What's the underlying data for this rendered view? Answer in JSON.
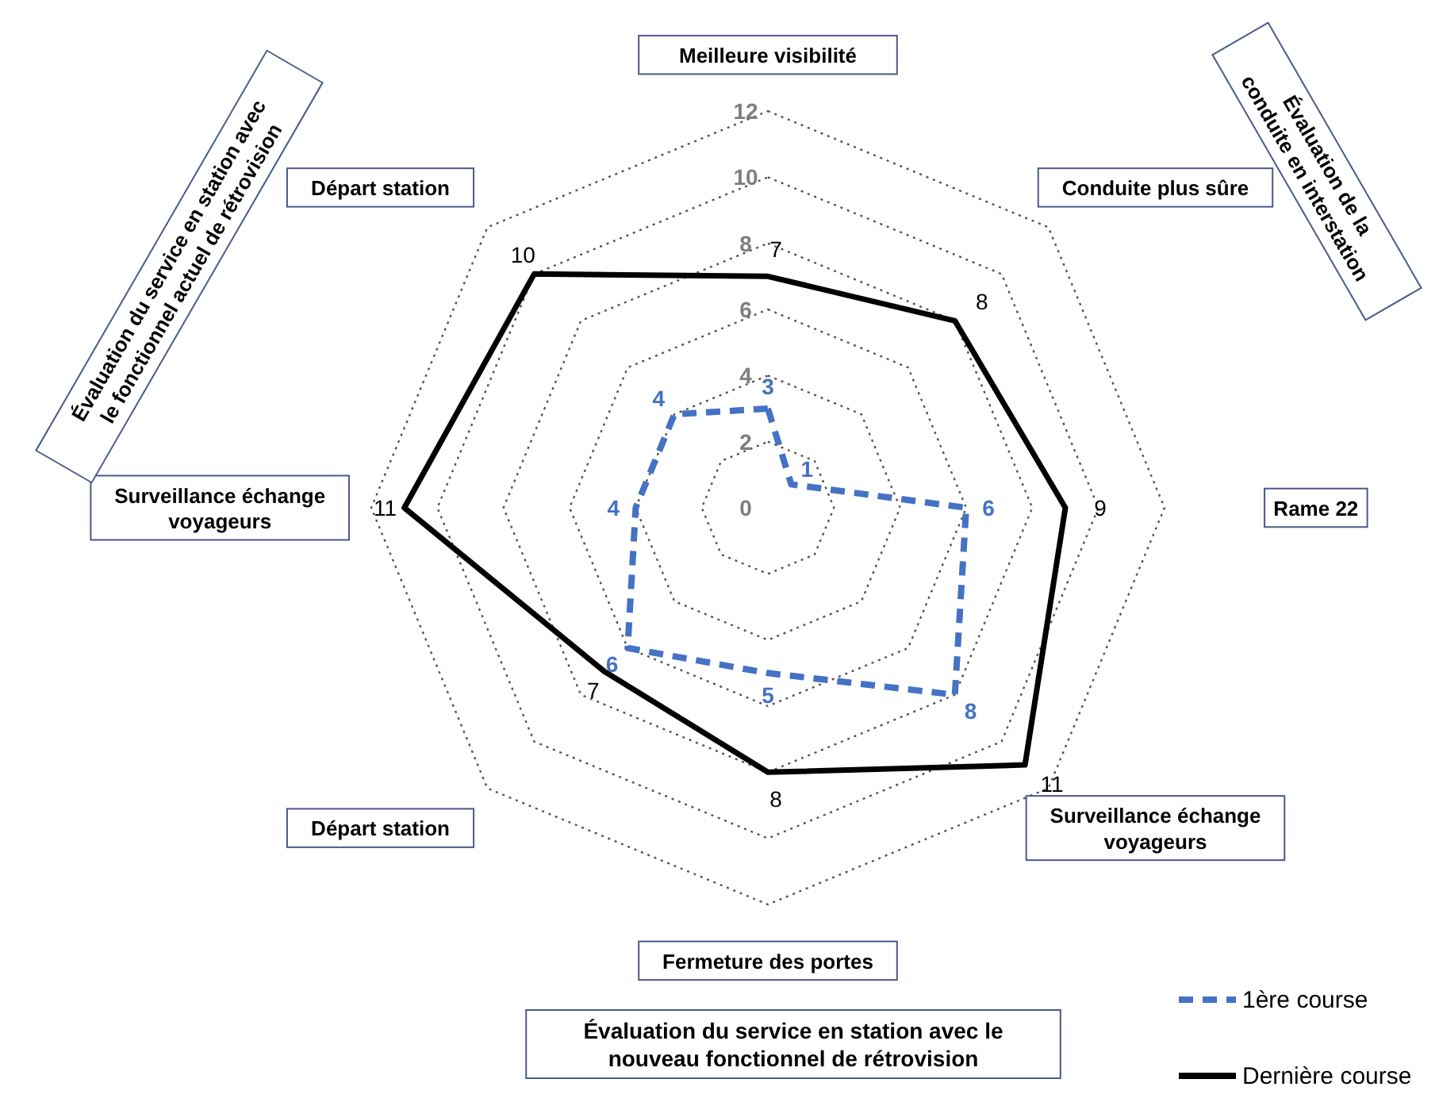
{
  "chart_data": {
    "type": "radar",
    "categories": [
      "Meilleure visibilité",
      "Conduite plus sûre",
      "Rame 22",
      "Surveillance échange voyageurs",
      "Fermeture des portes",
      "Départ station",
      "Surveillance échange voyageurs",
      "Départ station"
    ],
    "series": [
      {
        "name": "1ère course",
        "color": "#4472c4",
        "line_style": "dashed",
        "values": [
          3,
          1,
          6,
          8,
          5,
          6,
          4,
          4
        ]
      },
      {
        "name": "Dernière course",
        "color": "#000000",
        "line_style": "solid",
        "values": [
          7,
          8,
          9,
          11,
          8,
          7,
          11,
          10
        ]
      }
    ],
    "ylim": [
      0,
      12
    ],
    "yticks": [
      0,
      2,
      4,
      6,
      8,
      10,
      12
    ],
    "grid": true,
    "data_labels": true,
    "marker": "none",
    "legend": "bottom right",
    "annotations": [
      "Évaluation du service en station avec le fonctionnel actuel de rétrovision",
      "Évaluation de la conduite en interstation",
      "Évaluation du service en station avec le nouveau fonctionnel de rétrovision"
    ]
  }
}
